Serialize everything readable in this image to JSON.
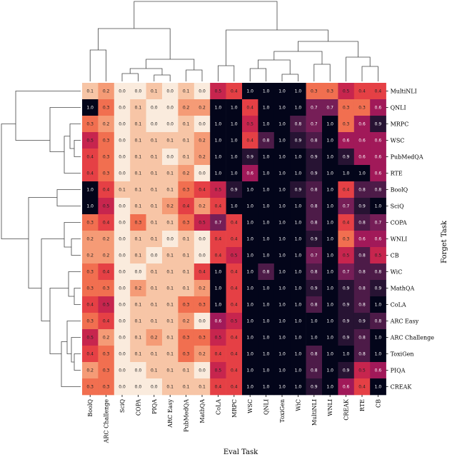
{
  "chart_data": {
    "type": "heatmap",
    "xlabel": "Eval Task",
    "ylabel": "Forget Task",
    "columns": [
      "BoolQ",
      "ARC Challenge",
      "SciQ",
      "COPA",
      "PIQA",
      "ARC Easy",
      "PubMedQA",
      "MathQA",
      "CoLA",
      "MRPC",
      "WSC",
      "QNLI",
      "ToxiGen",
      "WiC",
      "MultiNLI",
      "WNLI",
      "CREAK",
      "RTE",
      "CB"
    ],
    "rows": [
      "MultiNLI",
      "QNLI",
      "MRPC",
      "WSC",
      "PubMedQA",
      "RTE",
      "BoolQ",
      "SciQ",
      "COPA",
      "WNLI",
      "CB",
      "WiC",
      "MathQA",
      "CoLA",
      "ARC Easy",
      "ARC Challenge",
      "ToxiGen",
      "PIQA",
      "CREAK"
    ],
    "values": [
      [
        0.1,
        0.2,
        0.0,
        0.0,
        0.1,
        0.0,
        0.1,
        0.0,
        0.5,
        0.4,
        1.0,
        1.0,
        1.0,
        1.0,
        0.3,
        0.3,
        0.5,
        0.4,
        0.4
      ],
      [
        1.0,
        0.3,
        0.0,
        0.1,
        0.0,
        0.0,
        0.2,
        0.2,
        1.0,
        1.0,
        0.4,
        1.0,
        1.0,
        1.0,
        0.7,
        0.7,
        0.3,
        0.3,
        0.6
      ],
      [
        0.3,
        0.2,
        0.0,
        0.1,
        0.0,
        0.0,
        0.1,
        0.0,
        1.0,
        1.0,
        0.5,
        1.0,
        1.0,
        0.8,
        0.7,
        1.0,
        0.3,
        0.6,
        0.9
      ],
      [
        0.5,
        0.3,
        0.0,
        0.1,
        0.1,
        0.1,
        0.1,
        0.2,
        1.0,
        1.0,
        0.4,
        0.8,
        1.0,
        0.9,
        0.8,
        1.0,
        0.6,
        0.6,
        0.6
      ],
      [
        0.4,
        0.3,
        0.0,
        0.1,
        0.1,
        0.0,
        0.1,
        0.2,
        1.0,
        1.0,
        0.9,
        1.0,
        1.0,
        1.0,
        0.9,
        1.0,
        0.9,
        0.6,
        0.6
      ],
      [
        0.4,
        0.3,
        0.0,
        0.1,
        0.1,
        0.1,
        0.2,
        0.0,
        1.0,
        1.0,
        0.6,
        1.0,
        1.0,
        1.0,
        0.9,
        1.0,
        1.0,
        1.0,
        0.6
      ],
      [
        1.0,
        0.4,
        0.1,
        0.1,
        0.1,
        0.1,
        0.3,
        0.4,
        0.5,
        0.9,
        1.0,
        1.0,
        1.0,
        0.9,
        0.8,
        1.0,
        0.4,
        0.8,
        0.8
      ],
      [
        1.0,
        0.5,
        0.0,
        0.1,
        0.1,
        0.2,
        0.4,
        0.2,
        0.4,
        1.0,
        1.0,
        1.0,
        1.0,
        1.0,
        0.8,
        1.0,
        0.7,
        0.9,
        1.0
      ],
      [
        0.3,
        0.4,
        0.0,
        0.3,
        0.1,
        0.1,
        0.3,
        0.5,
        0.7,
        0.4,
        1.0,
        1.0,
        1.0,
        1.0,
        0.8,
        1.0,
        0.4,
        0.8,
        0.7
      ],
      [
        0.2,
        0.2,
        0.0,
        0.1,
        0.1,
        0.0,
        0.1,
        0.0,
        0.4,
        0.4,
        1.0,
        1.0,
        1.0,
        1.0,
        0.9,
        1.0,
        0.3,
        0.6,
        0.6
      ],
      [
        0.2,
        0.2,
        0.0,
        0.1,
        0.0,
        0.1,
        0.1,
        0.0,
        0.4,
        0.5,
        1.0,
        1.0,
        1.0,
        1.0,
        0.7,
        1.0,
        0.5,
        0.8,
        0.5
      ],
      [
        0.3,
        0.4,
        0.0,
        0.0,
        0.1,
        0.1,
        0.1,
        0.4,
        1.0,
        0.4,
        1.0,
        0.8,
        1.0,
        1.0,
        0.8,
        1.0,
        0.7,
        0.8,
        0.8
      ],
      [
        0.3,
        0.3,
        0.0,
        0.2,
        0.1,
        0.1,
        0.1,
        0.2,
        1.0,
        0.4,
        1.0,
        1.0,
        1.0,
        1.0,
        0.9,
        1.0,
        0.9,
        0.8,
        0.9
      ],
      [
        0.4,
        0.5,
        0.0,
        0.1,
        0.1,
        0.1,
        0.3,
        0.3,
        1.0,
        0.4,
        1.0,
        1.0,
        1.0,
        1.0,
        0.8,
        1.0,
        0.9,
        0.8,
        1.0
      ],
      [
        0.3,
        0.4,
        0.0,
        0.1,
        0.1,
        0.1,
        0.2,
        0.0,
        0.6,
        0.5,
        1.0,
        1.0,
        1.0,
        1.0,
        1.0,
        1.0,
        0.9,
        0.9,
        0.8
      ],
      [
        0.5,
        0.2,
        0.0,
        0.1,
        0.2,
        0.1,
        0.3,
        0.3,
        0.5,
        0.4,
        1.0,
        1.0,
        1.0,
        1.0,
        1.0,
        1.0,
        0.9,
        0.8,
        1.0
      ],
      [
        0.4,
        0.3,
        0.0,
        0.1,
        0.1,
        0.1,
        0.3,
        0.2,
        0.4,
        0.4,
        1.0,
        1.0,
        1.0,
        1.0,
        0.8,
        1.0,
        1.0,
        0.8,
        1.0
      ],
      [
        0.2,
        0.3,
        0.0,
        0.0,
        0.1,
        0.1,
        0.1,
        0.0,
        0.5,
        0.4,
        1.0,
        1.0,
        1.0,
        1.0,
        0.8,
        1.0,
        0.9,
        0.5,
        0.6
      ],
      [
        0.3,
        0.3,
        0.0,
        0.0,
        0.0,
        0.1,
        0.1,
        0.1,
        0.4,
        0.4,
        1.0,
        1.0,
        1.0,
        1.0,
        0.9,
        1.0,
        0.6,
        0.4,
        1.0
      ]
    ],
    "colormap": [
      "#faebdd",
      "#f6b48e",
      "#f37651",
      "#e13342",
      "#ad1759",
      "#701f57",
      "#36193e",
      "#03051a"
    ],
    "vmin": 0.0,
    "vmax": 1.0,
    "col_dendrogram": true,
    "row_dendrogram": true,
    "dendrogram_color": "#444444"
  }
}
